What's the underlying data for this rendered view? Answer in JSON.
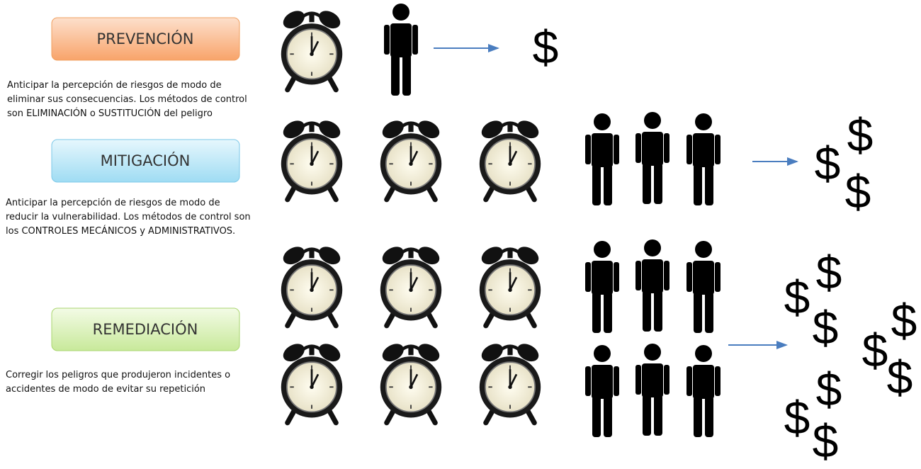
{
  "boxes": [
    {
      "label": "PREVENCIÓN",
      "description": [
        "Anticipar la percepción de riesgos de modo de",
        "eliminar sus consecuencias. Los métodos de control",
        "son ELIMINACIÓN o SUSTITUCIÓN del peligro"
      ]
    },
    {
      "label": "MITIGACIÓN",
      "description": [
        "Anticipar la percepción de riesgos de modo de",
        "reducir la vulnerabilidad. Los métodos de control son",
        "los CONTROLES MECÁNICOS y ADMINISTRATIVOS."
      ]
    },
    {
      "label": "REMEDIACIÓN",
      "description": [
        "Corregir los peligros que produjeron incidentes o",
        "accidentes de modo de evitar su repetición"
      ]
    }
  ],
  "currency_symbol": "$"
}
